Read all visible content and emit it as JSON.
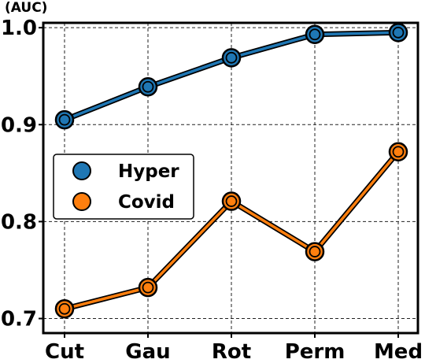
{
  "chart_data": {
    "type": "line",
    "title": "",
    "xlabel": "",
    "ylabel": "(AUC)",
    "categories": [
      "Cut",
      "Gau",
      "Rot",
      "Perm",
      "Med"
    ],
    "ylim": [
      0.685,
      1.005
    ],
    "yticks": [
      0.7,
      0.8,
      0.9,
      1.0
    ],
    "ytick_labels": [
      "0.7",
      "0.8",
      "0.9",
      "1.0"
    ],
    "grid": true,
    "legend_position": "center-left",
    "series": [
      {
        "name": "Hyper",
        "color": "#1f77b4",
        "values": [
          0.905,
          0.939,
          0.969,
          0.993,
          0.995
        ]
      },
      {
        "name": "Covid",
        "color": "#ff7f0e",
        "values": [
          0.71,
          0.732,
          0.821,
          0.769,
          0.872
        ]
      }
    ]
  }
}
